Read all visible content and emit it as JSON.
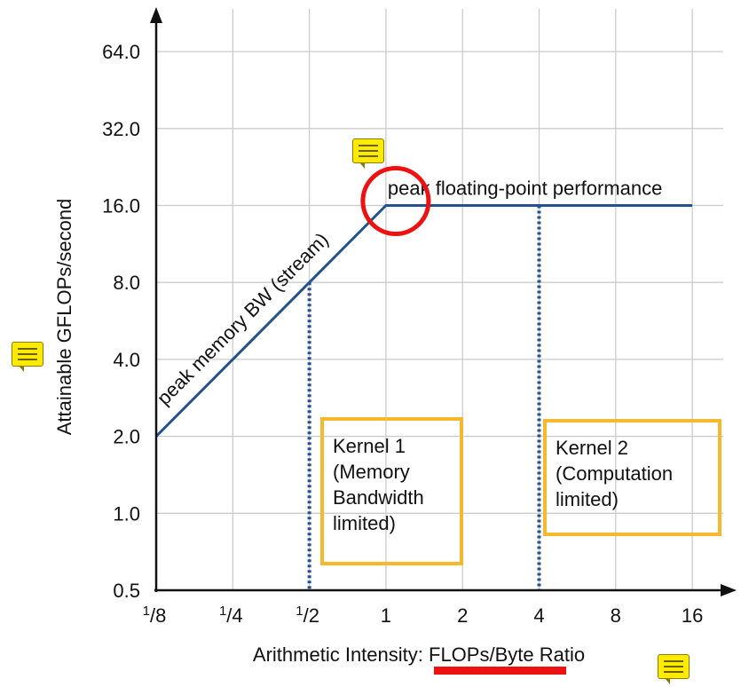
{
  "chart_data": {
    "type": "line",
    "title": "",
    "xlabel_prefix": "Arithmetic Intensity: ",
    "xlabel_highlight": "FLOPs/Byte",
    "xlabel_suffix": " Ratio",
    "ylabel": "Attainable GFLOPs/second",
    "x_scale": "log2",
    "y_scale": "log2",
    "xlim": [
      0.125,
      16
    ],
    "ylim": [
      0.5,
      64
    ],
    "x_ticks": [
      {
        "value": 0.125,
        "label": "1/8"
      },
      {
        "value": 0.25,
        "label": "1/4"
      },
      {
        "value": 0.5,
        "label": "1/2"
      },
      {
        "value": 1,
        "label": "1"
      },
      {
        "value": 2,
        "label": "2"
      },
      {
        "value": 4,
        "label": "4"
      },
      {
        "value": 8,
        "label": "8"
      },
      {
        "value": 16,
        "label": "16"
      }
    ],
    "y_ticks": [
      {
        "value": 0.5,
        "label": "0.5"
      },
      {
        "value": 1,
        "label": "1.0"
      },
      {
        "value": 2,
        "label": "2.0"
      },
      {
        "value": 4,
        "label": "4.0"
      },
      {
        "value": 8,
        "label": "8.0"
      },
      {
        "value": 16,
        "label": "16.0"
      },
      {
        "value": 32,
        "label": "32.0"
      },
      {
        "value": 64,
        "label": "64.0"
      }
    ],
    "grid": true,
    "series": [
      {
        "name": "",
        "x": [
          0.125,
          1,
          16
        ],
        "y": [
          2,
          16,
          16
        ]
      }
    ],
    "vlines": [
      {
        "x": 0.5,
        "y_top": 8
      },
      {
        "x": 4,
        "y_top": 16
      }
    ],
    "annotations": {
      "memory_bw": "peak memory BW (stream)",
      "peak_fp": "peak floating-point performance"
    },
    "kernel1": [
      "Kernel 1",
      "(Memory",
      "Bandwidth",
      "limited)"
    ],
    "kernel2": [
      "Kernel 2",
      "(Computation",
      "limited)"
    ],
    "highlight_circle_at": {
      "x": 1,
      "y": 16
    },
    "colors": {
      "roofline": "#24528f",
      "grid": "#cccccc",
      "axis": "#111111",
      "kernel_box": "#f5b82e",
      "red_mark": "#ee1111",
      "note": "#ffea00"
    }
  }
}
